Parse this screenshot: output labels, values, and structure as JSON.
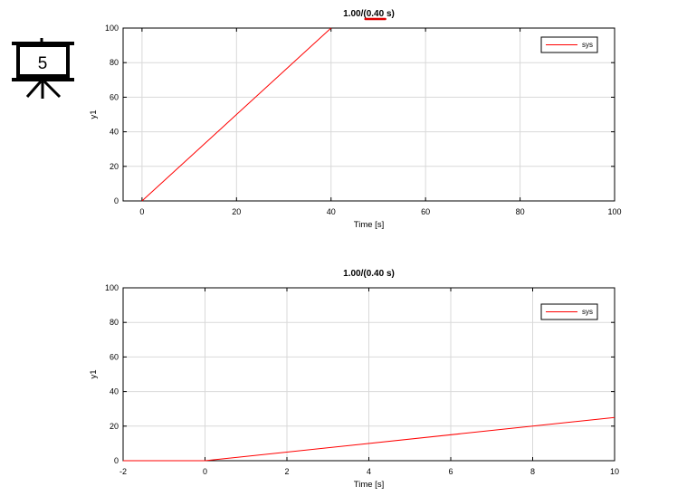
{
  "badge": {
    "number": "5",
    "icon": "presentation-board-icon"
  },
  "colors": {
    "series": "#ff0000",
    "grid": "#d9d9d9",
    "axis": "#000000",
    "highlight": "#dd0000"
  },
  "chart_data": [
    {
      "type": "line",
      "title": "1.00/(0.40 s)",
      "title_parts": {
        "pre": "1.00/(",
        "highlight": "0.40",
        "post": " s)"
      },
      "xlabel": "Time [s]",
      "ylabel": "y1",
      "xlim": [
        -4,
        100
      ],
      "ylim": [
        0,
        100
      ],
      "xticks": [
        0,
        20,
        40,
        60,
        80,
        100
      ],
      "yticks": [
        0,
        20,
        40,
        60,
        80,
        100
      ],
      "grid": true,
      "legend_position": "top-right",
      "series": [
        {
          "name": "sys",
          "x": [
            0,
            40
          ],
          "y": [
            0,
            100
          ]
        }
      ]
    },
    {
      "type": "line",
      "title": "1.00/(0.40 s)",
      "xlabel": "Time [s]",
      "ylabel": "y1",
      "xlim": [
        -2,
        10
      ],
      "ylim": [
        0,
        100
      ],
      "xticks": [
        -2,
        0,
        2,
        4,
        6,
        8,
        10
      ],
      "yticks": [
        0,
        20,
        40,
        60,
        80,
        100
      ],
      "grid": true,
      "legend_position": "top-right",
      "series": [
        {
          "name": "sys",
          "x": [
            -2,
            0,
            10
          ],
          "y": [
            0,
            0,
            25
          ]
        }
      ]
    }
  ]
}
